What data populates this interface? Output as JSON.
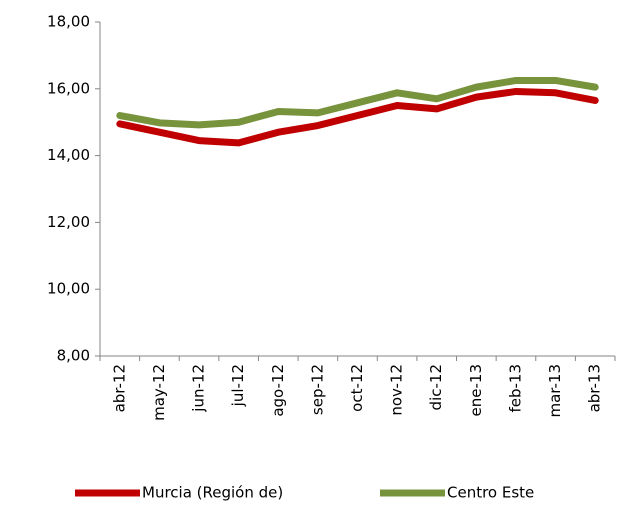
{
  "chart_data": {
    "type": "line",
    "categories": [
      "abr-12",
      "may-12",
      "jun-12",
      "jul-12",
      "ago-12",
      "sep-12",
      "oct-12",
      "nov-12",
      "dic-12",
      "ene-13",
      "feb-13",
      "mar-13",
      "abr-13"
    ],
    "series": [
      {
        "name": "Murcia (Región de)",
        "color": "#c00000",
        "values": [
          14.95,
          14.7,
          14.45,
          14.38,
          14.7,
          14.9,
          15.2,
          15.5,
          15.4,
          15.75,
          15.92,
          15.88,
          15.65
        ]
      },
      {
        "name": "Centro Este",
        "color": "#77933c",
        "values": [
          15.2,
          14.98,
          14.92,
          15.0,
          15.32,
          15.28,
          15.58,
          15.88,
          15.7,
          16.05,
          16.25,
          16.25,
          16.05
        ]
      }
    ],
    "ylim": [
      8,
      18
    ],
    "yticks": [
      {
        "value": 8,
        "label": "8,00"
      },
      {
        "value": 10,
        "label": "10,00"
      },
      {
        "value": 12,
        "label": "12,00"
      },
      {
        "value": 14,
        "label": "14,00"
      },
      {
        "value": 16,
        "label": "16,00"
      },
      {
        "value": 18,
        "label": "18,00"
      }
    ],
    "grid": false,
    "legend": "bottom"
  }
}
